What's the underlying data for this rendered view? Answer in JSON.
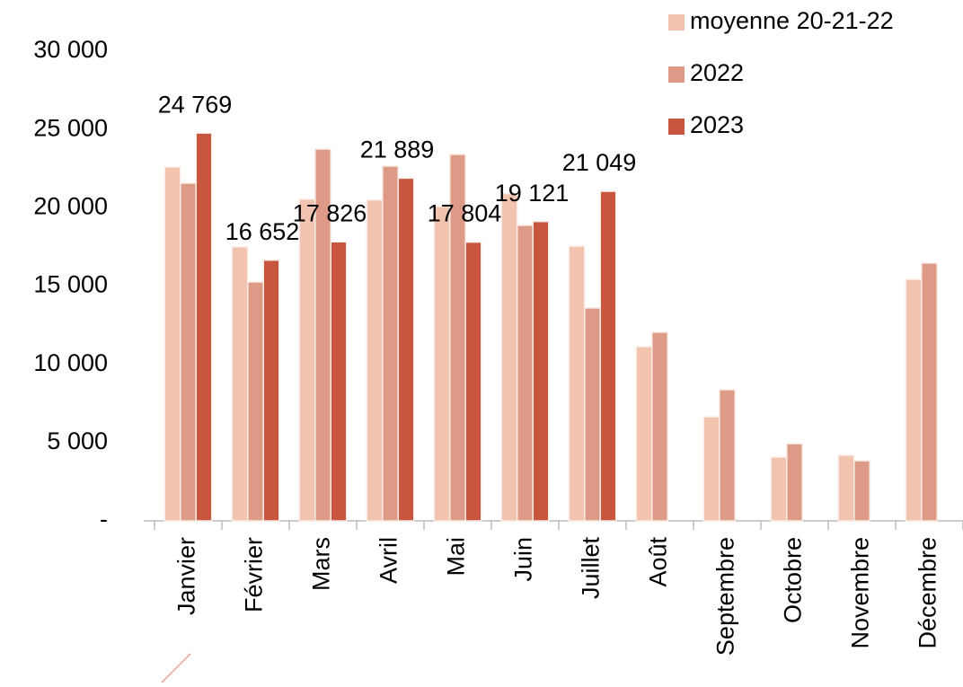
{
  "chart_data": {
    "type": "bar",
    "categories": [
      "Janvier",
      "Février",
      "Mars",
      "Avril",
      "Mai",
      "Juin",
      "Juillet",
      "Août",
      "Septembre",
      "Octobre",
      "Novembre",
      "Décembre"
    ],
    "series": [
      {
        "name": "moyenne 20-21-22",
        "color": "#f2c4b0",
        "values": [
          22600,
          17500,
          20540,
          20500,
          20080,
          20900,
          17550,
          11130,
          6650,
          4070,
          4190,
          15430
        ]
      },
      {
        "name": "2022",
        "color": "#dc9a87",
        "values": [
          21570,
          15260,
          23750,
          22660,
          23410,
          18880,
          13600,
          12050,
          8380,
          4930,
          3840,
          16470
        ]
      },
      {
        "name": "2023",
        "color": "#c8553d",
        "values": [
          24769,
          16652,
          17826,
          21889,
          17804,
          19121,
          21049,
          null,
          null,
          null,
          null,
          null
        ],
        "value_labels": [
          "24 769",
          "16 652",
          "17 826",
          "21 889",
          "17 804",
          "19 121",
          "21 049",
          null,
          null,
          null,
          null,
          null
        ]
      }
    ],
    "ylim": [
      0,
      30000
    ],
    "yticks": [
      {
        "value": 0,
        "label": "-"
      },
      {
        "value": 5000,
        "label": "5 000"
      },
      {
        "value": 10000,
        "label": "10 000"
      },
      {
        "value": 15000,
        "label": "15 000"
      },
      {
        "value": 20000,
        "label": "20 000"
      },
      {
        "value": 25000,
        "label": "25 000"
      },
      {
        "value": 30000,
        "label": "30 000"
      }
    ],
    "grid": false,
    "legend": "top-right"
  }
}
